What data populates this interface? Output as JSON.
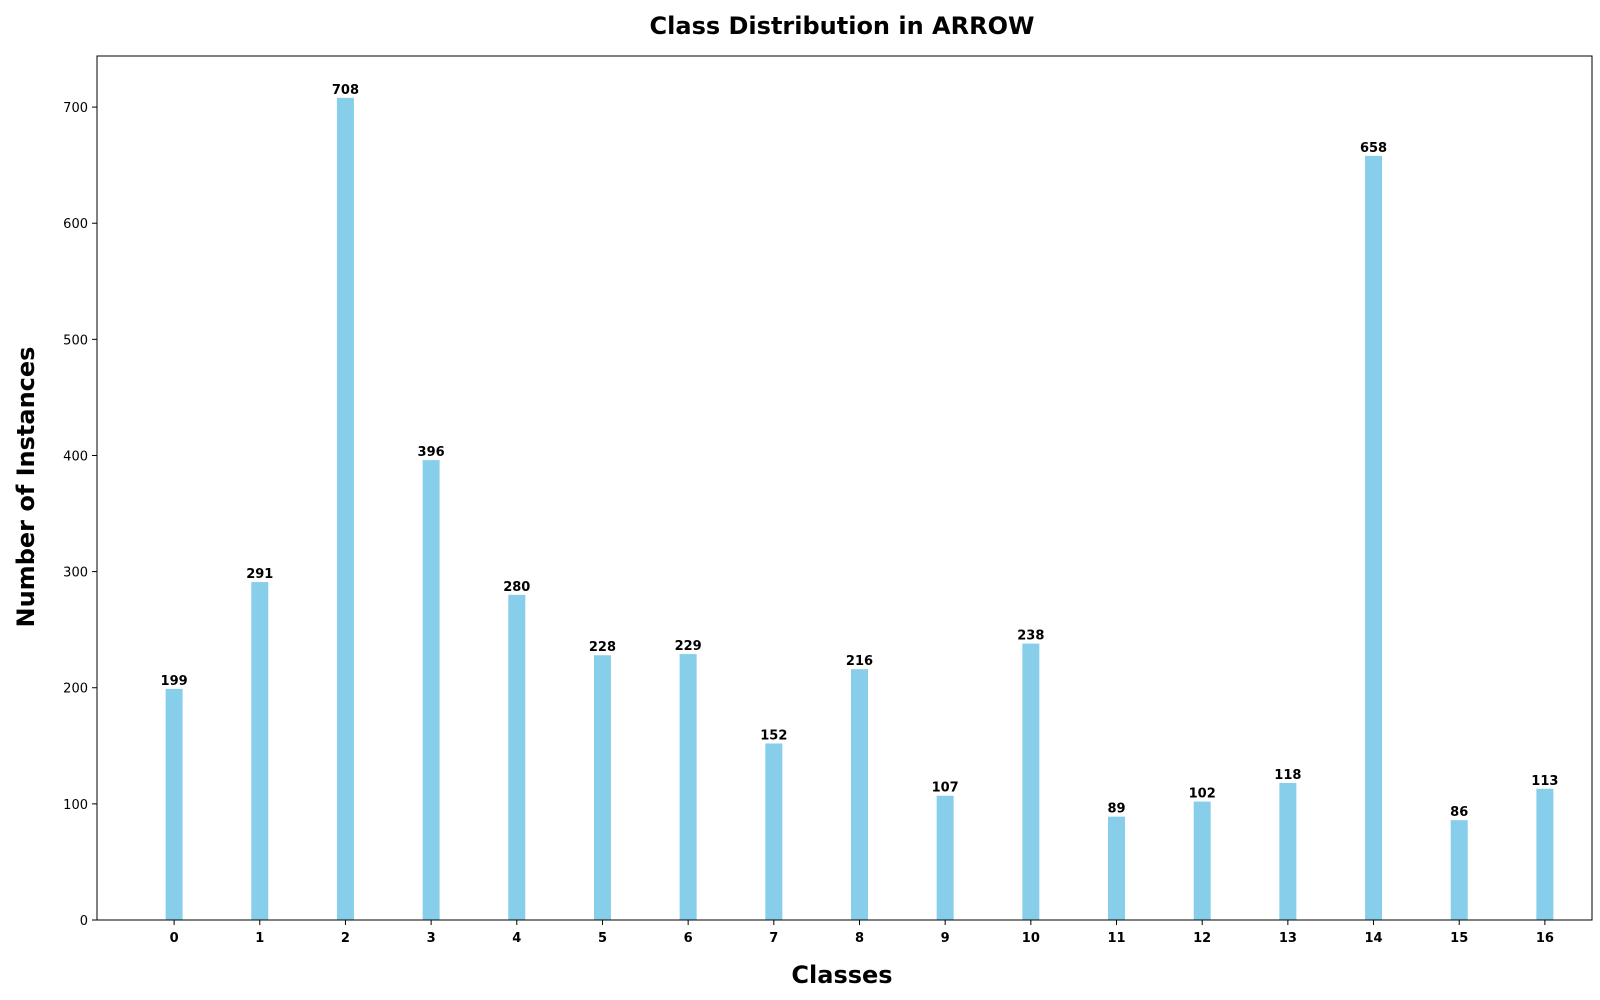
{
  "chart_data": {
    "type": "bar",
    "title": "Class Distribution in ARROW",
    "xlabel": "Classes",
    "ylabel": "Number of Instances",
    "categories": [
      "0",
      "1",
      "2",
      "3",
      "4",
      "5",
      "6",
      "7",
      "8",
      "9",
      "10",
      "11",
      "12",
      "13",
      "14",
      "15",
      "16"
    ],
    "values": [
      199,
      291,
      708,
      396,
      280,
      228,
      229,
      152,
      216,
      107,
      238,
      89,
      102,
      118,
      658,
      86,
      113
    ],
    "yticks": [
      0,
      100,
      200,
      300,
      400,
      500,
      600,
      700
    ],
    "ylim": [
      0,
      744
    ],
    "xlim": [
      -0.9,
      16.55
    ],
    "grid": false,
    "bar_color": "#87CEEB",
    "data_labels": true
  }
}
